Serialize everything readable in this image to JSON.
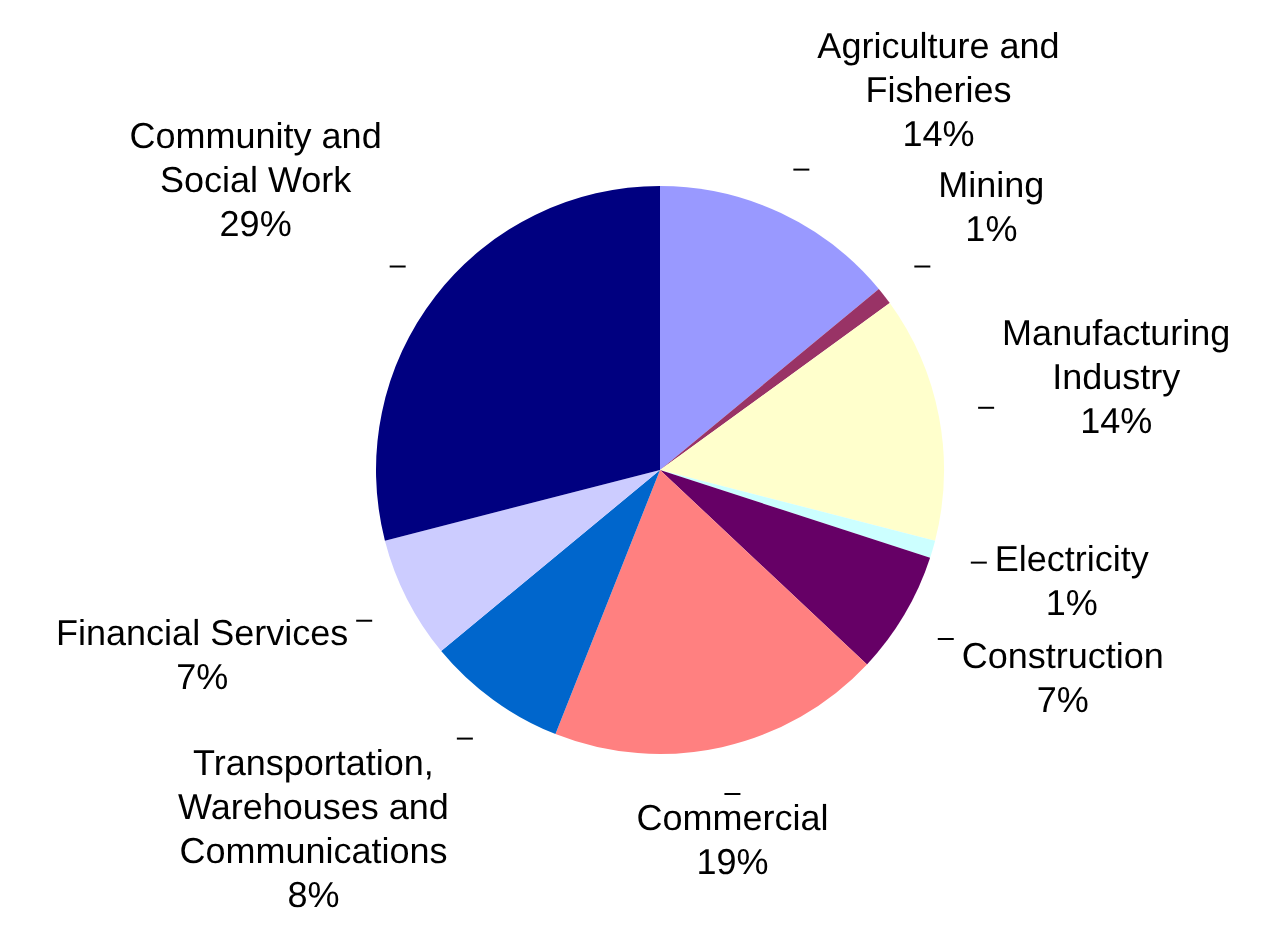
{
  "chart_data": {
    "type": "pie",
    "categories": [
      "Agriculture and Fisheries",
      "Mining",
      "Manufacturing Industry",
      "Electricity",
      "Construction",
      "Commercial",
      "Transportation, Warehouses and Communications",
      "Financial Services",
      "Community and Social Work"
    ],
    "values": [
      14,
      1,
      14,
      1,
      7,
      19,
      8,
      7,
      29
    ],
    "value_labels": [
      "14%",
      "1%",
      "14%",
      "1%",
      "7%",
      "19%",
      "8%",
      "7%",
      "29%"
    ],
    "colors": [
      "#9999ff",
      "#993366",
      "#ffffcc",
      "#ccffff",
      "#660066",
      "#ff8080",
      "#0066cc",
      "#ccccff",
      "#000080"
    ],
    "legend": false
  }
}
